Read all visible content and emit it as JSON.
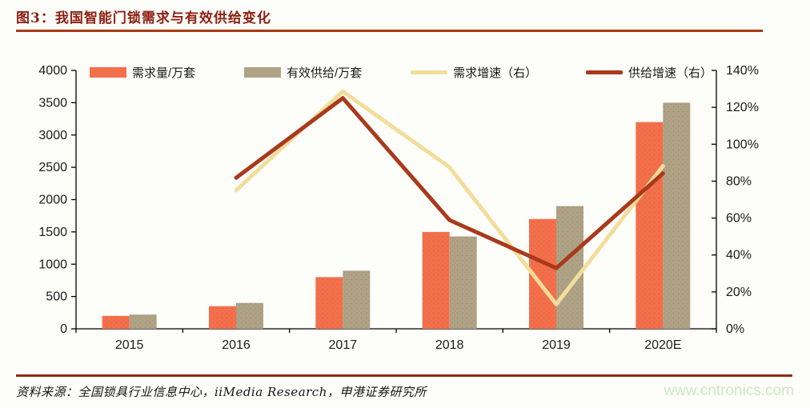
{
  "header": {
    "title": "图3：我国智能门锁需求与有效供给变化"
  },
  "footer": {
    "source": "资料来源：全国锁具行业信息中心，iiMedia Research，申港证券研究所",
    "watermark": "www.cntronics.com"
  },
  "colors": {
    "title": "#8e2012",
    "top_rule": "#a63c16",
    "bottom_rule": "#8c2c10",
    "demand_bar": "#f3704c",
    "demand_bar_dot": "#e4582f",
    "supply_bar": "#afa285",
    "supply_bar_dot": "#95876a",
    "demand_growth_line": "#f2dd9b",
    "supply_growth_line": "#a93a1c",
    "axis": "#000000",
    "axis_text": "#1a1a1a",
    "watermark": "#cfe8bf"
  },
  "chart_data": {
    "type": "bar",
    "subtype": "combo-bar-line-dual-axis",
    "categories": [
      "2015",
      "2016",
      "2017",
      "2018",
      "2019",
      "2020E"
    ],
    "series": [
      {
        "name": "需求量/万套",
        "type": "bar",
        "axis": "left",
        "color": "#f3704c",
        "values": [
          200,
          350,
          800,
          1500,
          1700,
          3200
        ]
      },
      {
        "name": "有效供给/万套",
        "type": "bar",
        "axis": "left",
        "color": "#afa285",
        "values": [
          220,
          400,
          900,
          1430,
          1900,
          3500
        ]
      },
      {
        "name": "需求增速（右）",
        "type": "line",
        "axis": "right",
        "color": "#f2dd9b",
        "values": [
          null,
          75.0,
          128.6,
          87.5,
          13.3,
          88.2
        ]
      },
      {
        "name": "供给增速（右）",
        "type": "line",
        "axis": "right",
        "color": "#a93a1c",
        "values": [
          null,
          81.8,
          125.0,
          58.9,
          32.9,
          84.2
        ]
      }
    ],
    "left_axis": {
      "min": 0,
      "max": 4000,
      "step": 500,
      "ticks": [
        "0",
        "500",
        "1000",
        "1500",
        "2000",
        "2500",
        "3000",
        "3500",
        "4000"
      ]
    },
    "right_axis": {
      "min": 0,
      "max": 140,
      "step": 20,
      "ticks": [
        "0%",
        "20%",
        "40%",
        "60%",
        "80%",
        "100%",
        "120%",
        "140%"
      ]
    },
    "legend_position": "top",
    "grid": false
  }
}
